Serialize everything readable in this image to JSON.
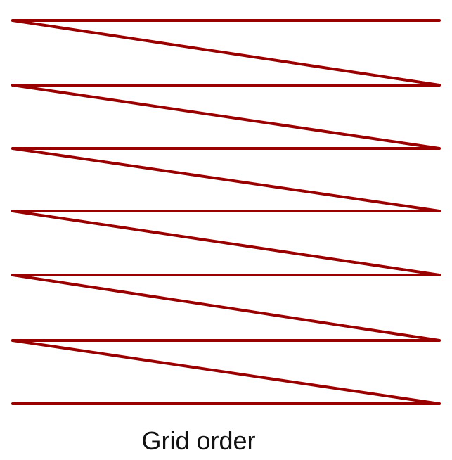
{
  "caption": "Grid order",
  "path": {
    "color": "#990000",
    "rows": 7,
    "pattern": "zigzag"
  }
}
